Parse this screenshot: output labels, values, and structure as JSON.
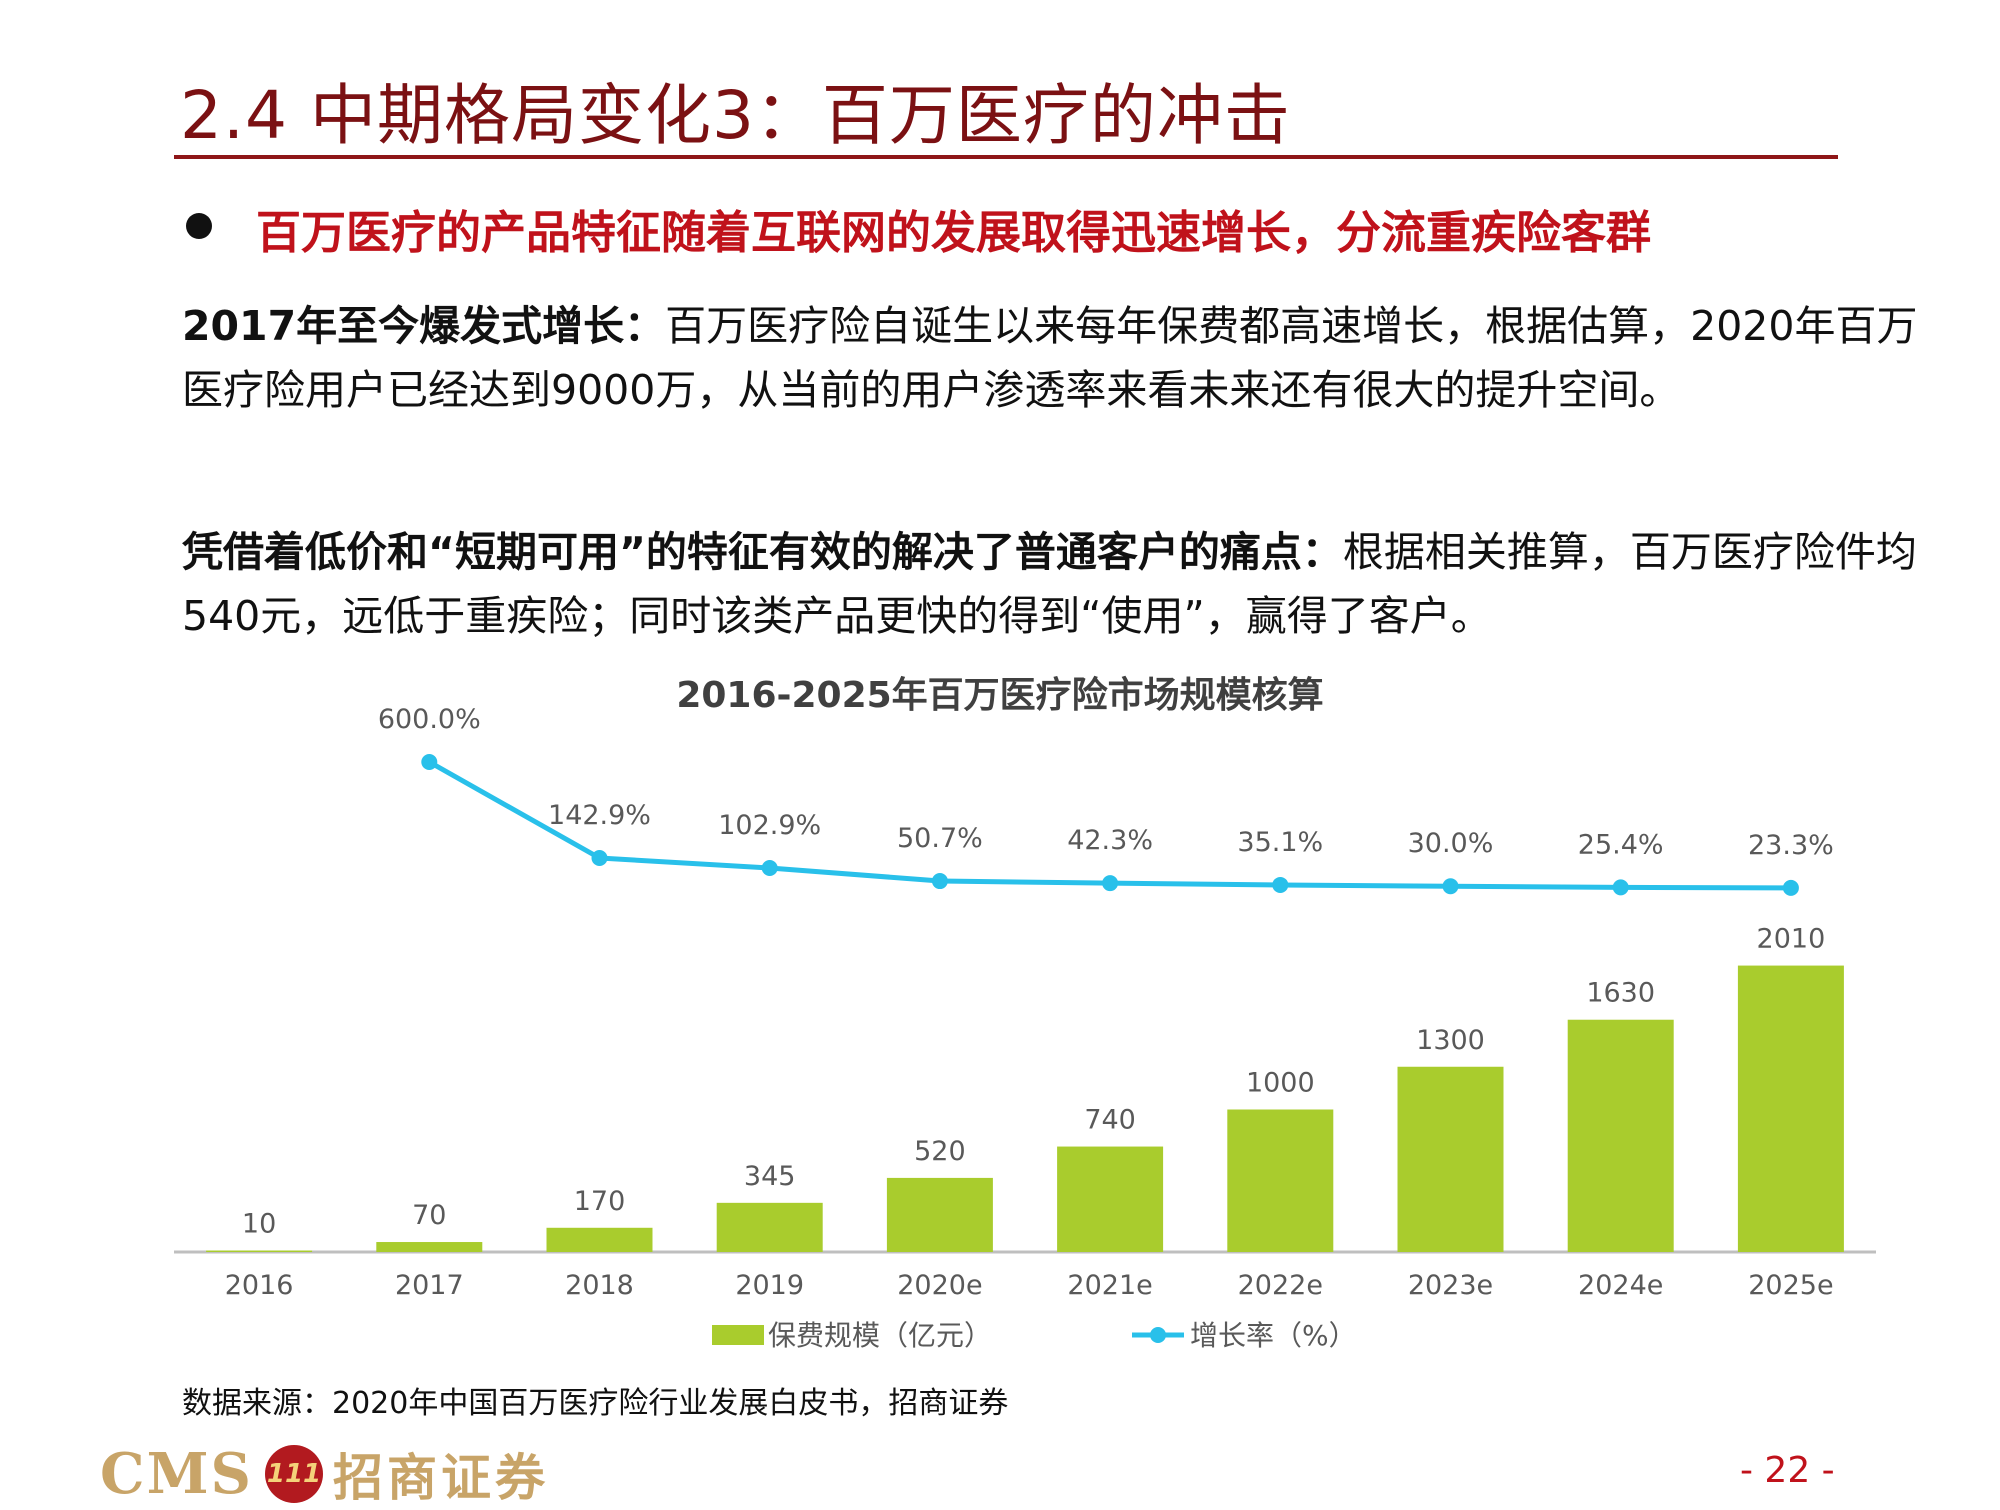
{
  "slide": {
    "title": "2.4  中期格局变化3：百万医疗的冲击",
    "subtitle": "百万医疗的产品特征随着互联网的发展取得迅速增长，分流重疾险客群",
    "para1": {
      "bold": "2017年至今爆发式增长：",
      "text": "百万医疗险自诞生以来每年保费都高速增长，根据估算，2020年百万医疗险用户已经达到9000万，从当前的用户渗透率来看未来还有很大的提升空间。"
    },
    "para2": {
      "bold": "凭借着低价和“短期可用”的特征有效的解决了普通客户的痛点：",
      "text": "根据相关推算，百万医疗险件均540元，远低于重疾险；同时该类产品更快的得到“使用”，赢得了客户。"
    },
    "source": "数据来源：2020年中国百万医疗险行业发展白皮书，招商证券",
    "footer": {
      "logo_latin": "CMS",
      "logo_mark": "111",
      "logo_cn": "招商证券",
      "page": "- 22 -"
    }
  },
  "chart_data": {
    "type": "bar",
    "title": "2016-2025年百万医疗险市场规模核算",
    "categories": [
      "2016",
      "2017",
      "2018",
      "2019",
      "2020e",
      "2021e",
      "2022e",
      "2023e",
      "2024e",
      "2025e"
    ],
    "series": [
      {
        "name": "保费规模（亿元）",
        "type": "bar",
        "color": "#a9cc2d",
        "values": [
          10,
          70,
          170,
          345,
          520,
          740,
          1000,
          1300,
          1630,
          2010
        ],
        "labels": [
          "10",
          "70",
          "170",
          "345",
          "520",
          "740",
          "1000",
          "1300",
          "1630",
          "2010"
        ]
      },
      {
        "name": "增长率（%）",
        "type": "line",
        "color": "#29c0ea",
        "values": [
          null,
          600.0,
          142.9,
          102.9,
          50.7,
          42.3,
          35.1,
          30.0,
          25.4,
          23.3
        ],
        "labels": [
          "",
          "600.0%",
          "142.9%",
          "102.9%",
          "50.7%",
          "42.3%",
          "35.1%",
          "30.0%",
          "25.4%",
          "23.3%"
        ]
      }
    ],
    "legend_position": "bottom",
    "grid": false
  }
}
